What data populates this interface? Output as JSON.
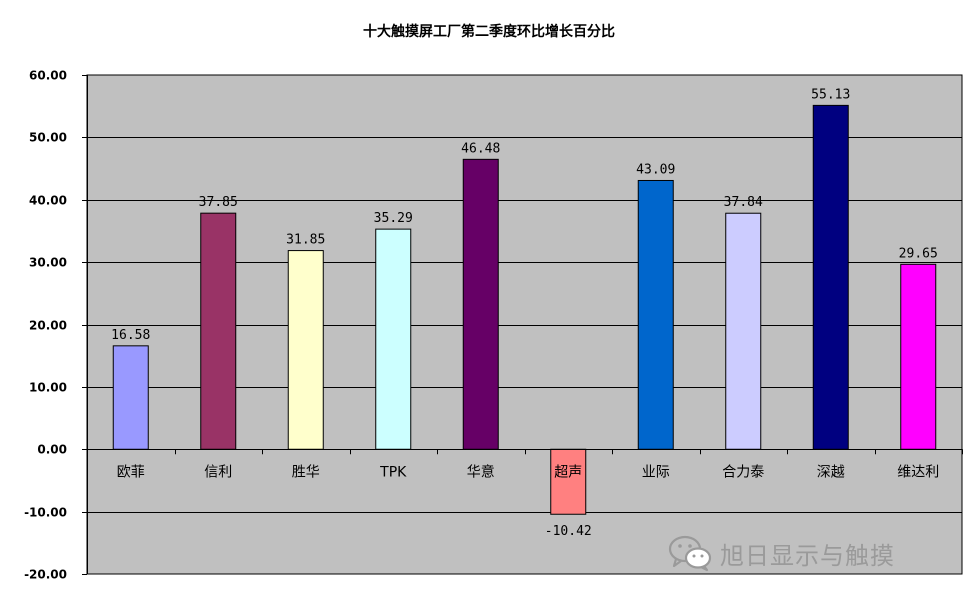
{
  "chart_data": {
    "type": "bar",
    "title": "十大触摸屏工厂第二季度环比增长百分比",
    "categories": [
      "欧菲",
      "信利",
      "胜华",
      "TPK",
      "华意",
      "超声",
      "业际",
      "合力泰",
      "深越",
      "维达利"
    ],
    "values": [
      16.58,
      37.85,
      31.85,
      35.29,
      46.48,
      -10.42,
      43.09,
      37.84,
      55.13,
      29.65
    ],
    "value_labels": [
      "16.58",
      "37.85",
      "31.85",
      "35.29",
      "46.48",
      "-10.42",
      "43.09",
      "37.84",
      "55.13",
      "29.65"
    ],
    "colors": [
      "#9999FF",
      "#993366",
      "#FFFFCC",
      "#CCFFFF",
      "#660066",
      "#FF8080",
      "#0066CC",
      "#CCCCFF",
      "#000080",
      "#FF00FF"
    ],
    "ylim": [
      -20,
      60
    ],
    "yticks": [
      "60.00",
      "50.00",
      "40.00",
      "30.00",
      "20.00",
      "10.00",
      "0.00",
      "-10.00",
      "-20.00"
    ],
    "grid": true,
    "plot_background": "#C0C0C0",
    "xlabel": "",
    "ylabel": ""
  },
  "watermark": {
    "text": "旭日显示与触摸",
    "icon": "wechat-icon"
  }
}
